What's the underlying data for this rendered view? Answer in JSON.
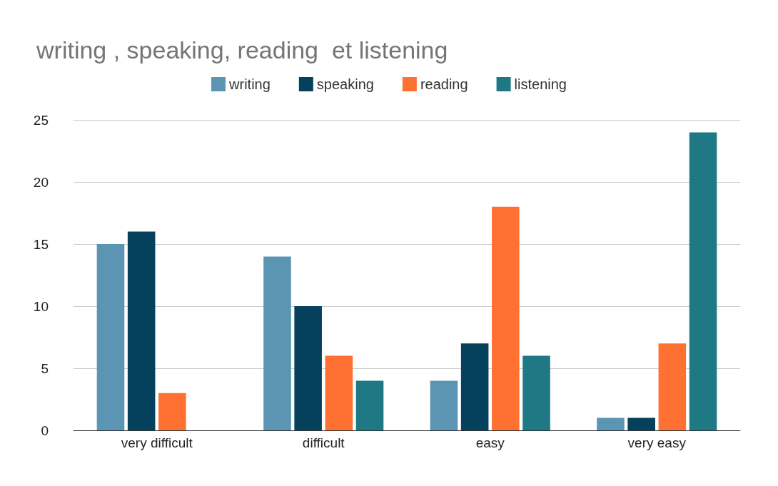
{
  "chart_data": {
    "type": "bar",
    "title": "writing , speaking, reading  et listening",
    "categories": [
      "very difficult",
      "difficult",
      "easy",
      "very easy"
    ],
    "series": [
      {
        "name": "writing",
        "color": "#5b95b3",
        "values": [
          15,
          14,
          4,
          1
        ]
      },
      {
        "name": "speaking",
        "color": "#05405c",
        "values": [
          16,
          10,
          7,
          1
        ]
      },
      {
        "name": "reading",
        "color": "#ff7132",
        "values": [
          3,
          6,
          18,
          7
        ]
      },
      {
        "name": "listening",
        "color": "#1e7985",
        "values": [
          0,
          4,
          6,
          24
        ]
      }
    ],
    "ylim": [
      0,
      25
    ],
    "yticks": [
      0,
      5,
      10,
      15,
      20,
      25
    ],
    "grid": "y",
    "legend": "top"
  }
}
